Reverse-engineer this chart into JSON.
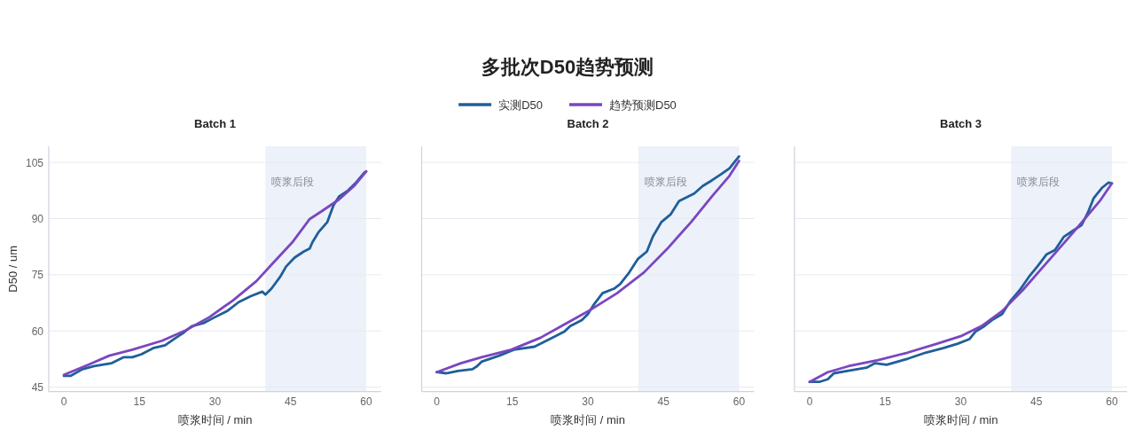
{
  "chart_data": [
    {
      "type": "other",
      "title": "多批次D50趋势预测"
    },
    {
      "type": "line",
      "title": "Batch 1",
      "xlabel": "喷浆时间 / min",
      "ylabel": "D50 / um",
      "xlim": [
        -3,
        63
      ],
      "ylim": [
        43.8,
        109.3
      ],
      "xticks": [
        0,
        15,
        30,
        45,
        60
      ],
      "yticks": [
        45,
        60,
        75,
        90,
        105
      ],
      "grid": "y",
      "bands": [
        {
          "axis": "x",
          "from": 40,
          "to": 60,
          "label": "喷浆后段",
          "color": "#edf1f9"
        }
      ],
      "series": [
        {
          "color": "#1f5f99",
          "x": [
            0,
            1.3,
            3.7,
            6.0,
            9.5,
            11.9,
            13.6,
            15.4,
            17.7,
            20.1,
            21.8,
            23.6,
            25.4,
            27.7,
            30.0,
            32.4,
            34.7,
            37.1,
            39.4,
            40.0,
            41.2,
            42.9,
            44.1,
            45.8,
            47.6,
            48.8,
            49.3,
            50.5,
            52.3,
            53.5,
            54.6,
            56.4,
            58.1,
            59.6,
            60
          ],
          "values": [
            48.0,
            48.0,
            49.8,
            50.6,
            51.4,
            53.0,
            53.0,
            53.8,
            55.4,
            56.2,
            57.8,
            59.4,
            61.3,
            62.1,
            63.7,
            65.3,
            67.7,
            69.3,
            70.5,
            69.7,
            71.3,
            74.4,
            77.2,
            79.6,
            81.2,
            82.0,
            83.6,
            86.3,
            89.1,
            93.5,
            95.9,
            97.5,
            99.8,
            102.2,
            102.6
          ]
        },
        {
          "color": "#7a46c0",
          "x": [
            0,
            4.9,
            9.0,
            13.6,
            19.5,
            24.2,
            28.9,
            33.5,
            38.2,
            41.7,
            45.3,
            48.8,
            51.1,
            54.6,
            57.6,
            60
          ],
          "values": [
            48.3,
            51.0,
            53.4,
            55.0,
            57.4,
            60.2,
            63.7,
            68.1,
            73.3,
            78.4,
            83.6,
            89.9,
            91.9,
            95.1,
            98.7,
            102.6
          ]
        }
      ]
    },
    {
      "type": "line",
      "title": "Batch 2",
      "xlabel": "喷浆时间 / min",
      "xlim": [
        -3,
        63
      ],
      "ylim": [
        43.8,
        109.3
      ],
      "xticks": [
        0,
        15,
        30,
        45,
        60
      ],
      "yticks": [
        45,
        60,
        75,
        90,
        105
      ],
      "grid": "y",
      "tick_labels": "x",
      "legend": "top",
      "bands": [
        {
          "axis": "x",
          "from": 40,
          "to": 60,
          "label": "喷浆后段",
          "color": "#edf1f9"
        }
      ],
      "series": [
        {
          "name": "实测D50",
          "color": "#1f5f99",
          "x": [
            0,
            1.9,
            4.2,
            7.1,
            8.0,
            8.9,
            12.4,
            15.3,
            19.4,
            23.0,
            25.3,
            26.5,
            28.8,
            30.0,
            31.1,
            32.9,
            35.2,
            36.4,
            38.2,
            39.9,
            41.7,
            42.9,
            44.6,
            46.4,
            48.1,
            51.1,
            52.8,
            54.6,
            56.4,
            58.1,
            60
          ],
          "values": [
            49.0,
            48.7,
            49.3,
            49.8,
            50.6,
            51.8,
            53.4,
            55.0,
            55.8,
            58.2,
            59.8,
            61.3,
            62.9,
            64.5,
            66.9,
            70.1,
            71.3,
            72.5,
            75.6,
            79.2,
            81.2,
            85.2,
            89.1,
            91.1,
            94.7,
            96.7,
            98.7,
            100.2,
            101.8,
            103.4,
            106.6
          ]
        },
        {
          "name": "趋势预测D50",
          "color": "#7a46c0",
          "x": [
            0,
            4.8,
            8.9,
            14.8,
            20.6,
            25.3,
            30.6,
            35.8,
            41.1,
            45.8,
            50.5,
            54.6,
            58.1,
            60
          ],
          "values": [
            49.0,
            51.4,
            53.0,
            55.0,
            58.2,
            61.7,
            65.7,
            70.1,
            75.6,
            82.0,
            89.1,
            95.9,
            101.4,
            105.4
          ]
        }
      ]
    },
    {
      "type": "line",
      "title": "Batch 3",
      "xlabel": "喷浆时间 / min",
      "xlim": [
        -3,
        63
      ],
      "ylim": [
        43.8,
        109.3
      ],
      "xticks": [
        0,
        15,
        30,
        45,
        60
      ],
      "yticks": [
        45,
        60,
        75,
        90,
        105
      ],
      "grid": "y",
      "tick_labels": "x",
      "bands": [
        {
          "axis": "x",
          "from": 40,
          "to": 60,
          "label": "喷浆后段",
          "color": "#edf1f9"
        }
      ],
      "series": [
        {
          "color": "#1f5f99",
          "x": [
            0,
            1.9,
            3.6,
            4.8,
            7.7,
            11.3,
            13.0,
            15.3,
            19.5,
            23.0,
            26.5,
            29.4,
            31.7,
            32.9,
            34.7,
            36.4,
            38.2,
            39.9,
            41.7,
            43.5,
            45.2,
            47.0,
            48.7,
            50.5,
            52.2,
            54.0,
            55.2,
            56.4,
            58.1,
            59.3,
            60
          ],
          "values": [
            46.4,
            46.4,
            47.1,
            48.7,
            49.4,
            50.2,
            51.4,
            51.0,
            52.6,
            54.2,
            55.4,
            56.6,
            57.8,
            59.8,
            61.3,
            63.1,
            64.5,
            68.1,
            70.9,
            74.4,
            77.2,
            80.4,
            81.6,
            85.2,
            86.7,
            88.3,
            91.5,
            95.5,
            98.3,
            99.6,
            99.4
          ]
        },
        {
          "color": "#7a46c0",
          "x": [
            0,
            3.6,
            7.7,
            13.6,
            19.4,
            25.3,
            30.0,
            34.1,
            38.2,
            42.3,
            46.4,
            51.1,
            54.6,
            57.6,
            60
          ],
          "values": [
            46.4,
            49.0,
            50.6,
            52.2,
            54.2,
            56.6,
            58.6,
            61.3,
            65.3,
            70.9,
            77.2,
            84.4,
            89.9,
            94.7,
            99.4
          ]
        }
      ]
    }
  ]
}
